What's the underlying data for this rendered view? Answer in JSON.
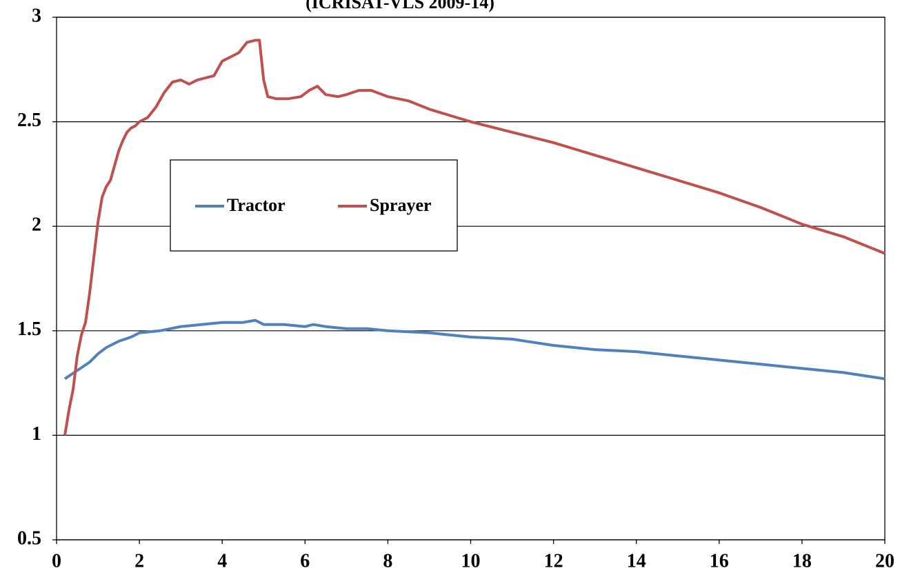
{
  "chart_data": {
    "type": "line",
    "title": "(ICRISAT-VLS 2009-14)",
    "xlim": [
      0,
      20
    ],
    "xticks": [
      0,
      2,
      4,
      6,
      8,
      10,
      12,
      14,
      16,
      18,
      20
    ],
    "ylim": [
      0.5,
      3
    ],
    "yticks": [
      0.5,
      1,
      1.5,
      2,
      2.5,
      3
    ],
    "grid": true,
    "legend": "upper left",
    "series": [
      {
        "name": "Tractor",
        "color": "#4f81bd",
        "x": [
          0.2,
          0.5,
          0.8,
          1.0,
          1.2,
          1.5,
          1.8,
          2.0,
          2.5,
          3.0,
          3.5,
          4.0,
          4.5,
          4.8,
          5.0,
          5.5,
          6.0,
          6.2,
          6.5,
          7.0,
          7.5,
          8,
          9,
          10,
          11,
          12,
          13,
          14,
          15,
          16,
          17,
          18,
          19,
          20
        ],
        "values": [
          1.27,
          1.31,
          1.35,
          1.39,
          1.42,
          1.45,
          1.47,
          1.49,
          1.5,
          1.52,
          1.53,
          1.54,
          1.54,
          1.55,
          1.53,
          1.53,
          1.52,
          1.53,
          1.52,
          1.51,
          1.51,
          1.5,
          1.49,
          1.47,
          1.46,
          1.43,
          1.41,
          1.4,
          1.38,
          1.36,
          1.34,
          1.32,
          1.3,
          1.27
        ]
      },
      {
        "name": "Sprayer",
        "color": "#c0504d",
        "x": [
          0.2,
          0.3,
          0.4,
          0.5,
          0.6,
          0.7,
          0.8,
          0.9,
          1.0,
          1.1,
          1.2,
          1.3,
          1.4,
          1.5,
          1.6,
          1.7,
          1.8,
          1.9,
          2.0,
          2.2,
          2.4,
          2.6,
          2.8,
          3.0,
          3.2,
          3.4,
          3.6,
          3.8,
          4.0,
          4.2,
          4.4,
          4.6,
          4.8,
          4.9,
          5.0,
          5.1,
          5.3,
          5.6,
          5.9,
          6.1,
          6.3,
          6.5,
          6.8,
          7.0,
          7.3,
          7.6,
          8.0,
          8.5,
          9.0,
          9.5,
          10.0,
          11,
          12,
          12.5,
          13,
          14,
          15,
          16,
          17,
          17.5,
          18,
          19,
          20
        ],
        "values": [
          1.0,
          1.12,
          1.22,
          1.38,
          1.48,
          1.54,
          1.68,
          1.85,
          2.02,
          2.14,
          2.19,
          2.22,
          2.29,
          2.36,
          2.41,
          2.45,
          2.47,
          2.48,
          2.5,
          2.52,
          2.57,
          2.64,
          2.69,
          2.7,
          2.68,
          2.7,
          2.71,
          2.72,
          2.79,
          2.81,
          2.83,
          2.88,
          2.89,
          2.89,
          2.7,
          2.62,
          2.61,
          2.61,
          2.62,
          2.65,
          2.67,
          2.63,
          2.62,
          2.63,
          2.65,
          2.65,
          2.62,
          2.6,
          2.56,
          2.53,
          2.5,
          2.45,
          2.4,
          2.37,
          2.34,
          2.28,
          2.22,
          2.16,
          2.09,
          2.05,
          2.01,
          1.95,
          1.87
        ]
      }
    ]
  }
}
